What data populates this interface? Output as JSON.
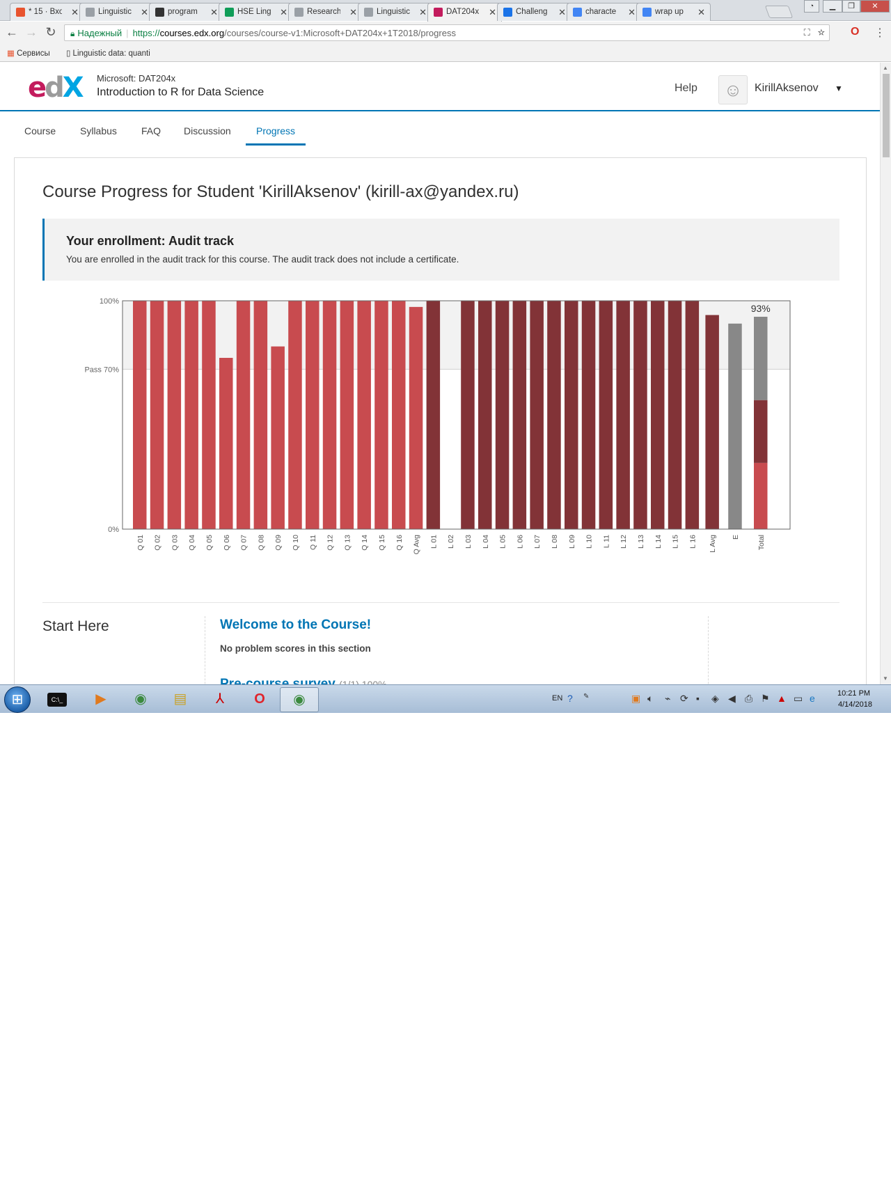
{
  "browser": {
    "tabs": [
      {
        "label": "* 15 · Вхо",
        "favicon": "mail-icon",
        "color": "#e8542f"
      },
      {
        "label": "Linguistic",
        "favicon": "doc-icon",
        "color": "#9aa0a6"
      },
      {
        "label": "program",
        "favicon": "r-icon",
        "color": "#333333"
      },
      {
        "label": "HSE Ling",
        "favicon": "sheets-icon",
        "color": "#0f9d58"
      },
      {
        "label": "Research",
        "favicon": "doc-icon",
        "color": "#9aa0a6"
      },
      {
        "label": "Linguistic",
        "favicon": "doc-icon",
        "color": "#9aa0a6"
      },
      {
        "label": "DAT204x",
        "favicon": "edx-icon",
        "color": "#c31c5d"
      },
      {
        "label": "Challeng",
        "favicon": "shield-icon",
        "color": "#1a73e8"
      },
      {
        "label": "characte",
        "favicon": "google-icon",
        "color": "#4285f4"
      },
      {
        "label": "wrap up",
        "favicon": "google-icon",
        "color": "#4285f4"
      }
    ],
    "active_tab_index": 6,
    "address": {
      "secure_label": "Надежный",
      "scheme": "https://",
      "host": "courses.edx.org",
      "path": "/courses/course-v1:Microsoft+DAT204x+1T2018/progress"
    },
    "bookmarks": [
      {
        "label": "Сервисы",
        "icon": "apps-icon"
      },
      {
        "label": "Linguistic data: quanti",
        "icon": "doc-icon"
      }
    ]
  },
  "site": {
    "logo": {
      "e": "e",
      "d": "d",
      "x": "X"
    },
    "course_org": "Microsoft: DAT204x",
    "course_name": "Introduction to R for Data Science",
    "help": "Help",
    "username": "KirillAksenov",
    "nav": [
      {
        "label": "Course"
      },
      {
        "label": "Syllabus"
      },
      {
        "label": "FAQ"
      },
      {
        "label": "Discussion"
      },
      {
        "label": "Progress"
      }
    ],
    "active_nav_index": 4
  },
  "progress": {
    "title": "Course Progress for Student 'KirillAksenov' (kirill-ax@yandex.ru)",
    "enrollment_title": "Your enrollment: Audit track",
    "enrollment_text": "You are enrolled in the audit track for this course. The audit track does not include a certificate."
  },
  "chart_data": {
    "type": "bar",
    "y_ticks": [
      {
        "label": "100%",
        "value": 100
      },
      {
        "label": "Pass 70%",
        "value": 70
      },
      {
        "label": "0%",
        "value": 0
      }
    ],
    "ylim": [
      0,
      100
    ],
    "pass_cutoff": 70,
    "colors": {
      "quiz": "#c84b4f",
      "lab": "#823337",
      "exam": "#888888"
    },
    "bars": [
      {
        "label": "Q 01",
        "value": 100,
        "kind": "quiz"
      },
      {
        "label": "Q 02",
        "value": 100,
        "kind": "quiz"
      },
      {
        "label": "Q 03",
        "value": 100,
        "kind": "quiz"
      },
      {
        "label": "Q 04",
        "value": 100,
        "kind": "quiz"
      },
      {
        "label": "Q 05",
        "value": 100,
        "kind": "quiz"
      },
      {
        "label": "Q 06",
        "value": 75,
        "kind": "quiz"
      },
      {
        "label": "Q 07",
        "value": 100,
        "kind": "quiz"
      },
      {
        "label": "Q 08",
        "value": 100,
        "kind": "quiz"
      },
      {
        "label": "Q 09",
        "value": 80,
        "kind": "quiz"
      },
      {
        "label": "Q 10",
        "value": 100,
        "kind": "quiz"
      },
      {
        "label": "Q 11",
        "value": 100,
        "kind": "quiz"
      },
      {
        "label": "Q 12",
        "value": 100,
        "kind": "quiz"
      },
      {
        "label": "Q 13",
        "value": 100,
        "kind": "quiz"
      },
      {
        "label": "Q 14",
        "value": 100,
        "kind": "quiz"
      },
      {
        "label": "Q 15",
        "value": 100,
        "kind": "quiz"
      },
      {
        "label": "Q 16",
        "value": 100,
        "kind": "quiz"
      },
      {
        "label": "Q Avg",
        "value": 97.3,
        "kind": "quiz"
      },
      {
        "label": "L 01",
        "value": 100,
        "kind": "lab"
      },
      {
        "label": "L 02",
        "value": 0,
        "kind": "lab"
      },
      {
        "label": "L 03",
        "value": 100,
        "kind": "lab"
      },
      {
        "label": "L 04",
        "value": 100,
        "kind": "lab"
      },
      {
        "label": "L 05",
        "value": 100,
        "kind": "lab"
      },
      {
        "label": "L 06",
        "value": 100,
        "kind": "lab"
      },
      {
        "label": "L 07",
        "value": 100,
        "kind": "lab"
      },
      {
        "label": "L 08",
        "value": 100,
        "kind": "lab"
      },
      {
        "label": "L 09",
        "value": 100,
        "kind": "lab"
      },
      {
        "label": "L 10",
        "value": 100,
        "kind": "lab"
      },
      {
        "label": "L 11",
        "value": 100,
        "kind": "lab"
      },
      {
        "label": "L 12",
        "value": 100,
        "kind": "lab"
      },
      {
        "label": "L 13",
        "value": 100,
        "kind": "lab"
      },
      {
        "label": "L 14",
        "value": 100,
        "kind": "lab"
      },
      {
        "label": "L 15",
        "value": 100,
        "kind": "lab"
      },
      {
        "label": "L 16",
        "value": 100,
        "kind": "lab"
      },
      {
        "label": "L Avg",
        "value": 93.75,
        "kind": "lab"
      },
      {
        "label": "E",
        "value": 90,
        "kind": "exam"
      }
    ],
    "total": {
      "label": "Total",
      "value": 93,
      "value_label": "93%",
      "segments": [
        {
          "kind": "quiz",
          "value": 29
        },
        {
          "kind": "lab",
          "value": 27.5
        },
        {
          "kind": "exam",
          "value": 36.5
        }
      ]
    }
  },
  "section": {
    "name": "Start Here",
    "subsections": [
      {
        "title": "Welcome to the Course!",
        "note": "No problem scores in this section"
      },
      {
        "title": "Pre-course survey",
        "score": "(1/1) 100%"
      }
    ]
  },
  "taskbar": {
    "apps": [
      {
        "name": "cmd-icon",
        "glyph": "C:\\_"
      },
      {
        "name": "media-player-icon",
        "glyph": "▶"
      },
      {
        "name": "chrome-icon",
        "glyph": "◉"
      },
      {
        "name": "explorer-icon",
        "glyph": "▤"
      },
      {
        "name": "acrobat-icon",
        "glyph": "⅄"
      },
      {
        "name": "opera-icon",
        "glyph": "O"
      },
      {
        "name": "chrome-icon",
        "glyph": "◉"
      }
    ],
    "language": "EN",
    "time": "10:21 PM",
    "date": "4/14/2018"
  }
}
